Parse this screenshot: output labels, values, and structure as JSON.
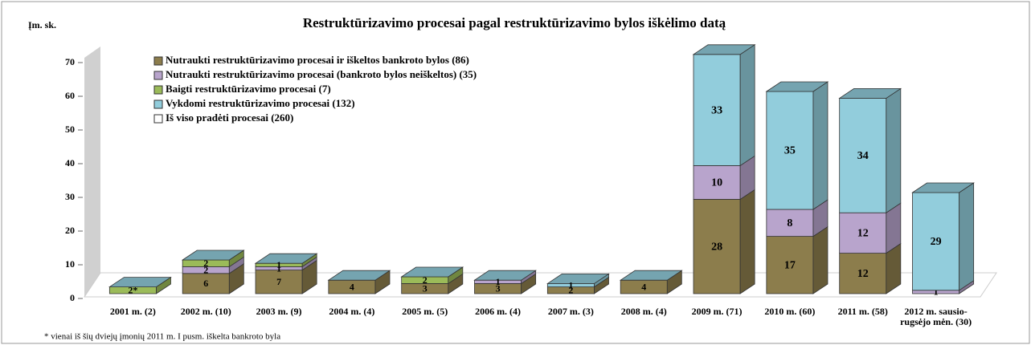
{
  "chart_data": {
    "type": "bar3d_stacked",
    "title": "Restruktūrizavimo procesai pagal restruktūrizavimo bylos iškėlimo datą",
    "y_label": "Įm. sk.",
    "footnote": "* vienai iš šių dviejų įmonių 2011 m. I pusm. iškelta bankroto byla",
    "categories": [
      "2001 m. (2)",
      "2002 m. (10)",
      "2003 m. (9)",
      "2004 m. (4)",
      "2005 m. (5)",
      "2006 m. (4)",
      "2007 m. (3)",
      "2008 m. (4)",
      "2009 m. (71)",
      "2010 m. (60)",
      "2011 m.  (58)",
      "2012 m. sausio-rugsėjo mėn. (30)"
    ],
    "series": [
      {
        "name": "Nutraukti restruktūrizavimo procesai ir iškeltos bankroto bylos (86)",
        "color": "#8c7d4c",
        "values": [
          0,
          6,
          7,
          4,
          3,
          3,
          2,
          4,
          28,
          17,
          12,
          0
        ]
      },
      {
        "name": "Nutraukti restruktūrizavimo procesai (bankroto bylos neiškeltos) (35)",
        "color": "#b8a4cc",
        "values": [
          0,
          2,
          1,
          0,
          0,
          1,
          0,
          0,
          10,
          8,
          12,
          1
        ]
      },
      {
        "name": "Baigti restruktūrizavimo procesai (7)",
        "color": "#9bbb59",
        "values": [
          2,
          2,
          1,
          0,
          2,
          0,
          0,
          0,
          0,
          0,
          0,
          0
        ],
        "value_labels": [
          "2*",
          "2",
          "1",
          null,
          "2",
          null,
          null,
          null,
          null,
          null,
          null,
          null
        ]
      },
      {
        "name": "Vykdomi restruktūrizavimo procesai (132)",
        "color": "#92cddc",
        "values": [
          0,
          0,
          0,
          0,
          0,
          0,
          1,
          0,
          33,
          35,
          34,
          29
        ]
      },
      {
        "name": "Iš viso pradėti procesai (260)",
        "color": "#ffffff"
      }
    ],
    "ylim": [
      0,
      70
    ],
    "yticks": [
      0,
      10,
      20,
      30,
      40,
      50,
      60,
      70
    ],
    "legend": "upper left"
  }
}
